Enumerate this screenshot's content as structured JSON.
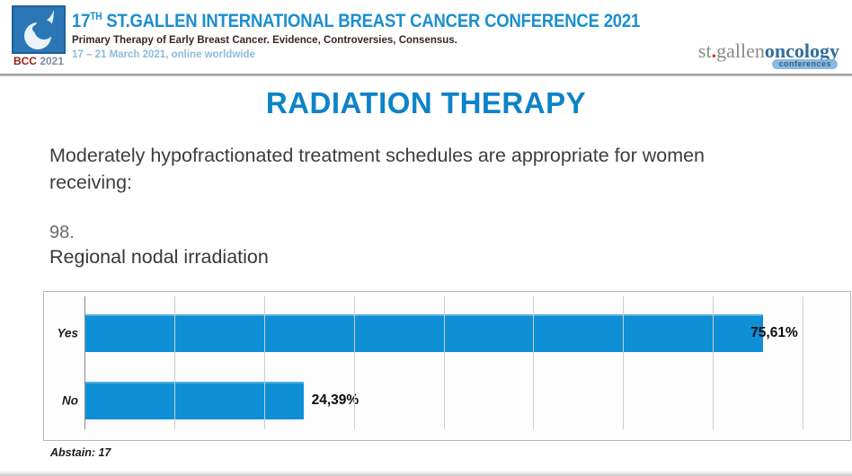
{
  "header": {
    "logo": {
      "bcc": "BCC",
      "year": "2021"
    },
    "title_num": "17",
    "title_sup": "TH",
    "title_rest": " ST.GALLEN INTERNATIONAL BREAST CANCER CONFERENCE 2021",
    "subtitle": "Primary Therapy of Early Breast Cancer. Evidence, Controversies, Consensus.",
    "dates": "17 – 21 March 2021, online worldwide",
    "org_logo": {
      "part1": "st",
      "dot": ".",
      "part2": "gallen",
      "part3": "oncology",
      "badge": "conferences"
    }
  },
  "slide": {
    "title": "RADIATION THERAPY",
    "question": "Moderately hypofractionated treatment schedules are appropriate for women receiving:",
    "question_number": "98.",
    "question_topic": "Regional nodal irradiation",
    "abstain": "Abstain: 17"
  },
  "chart_data": {
    "type": "bar",
    "orientation": "horizontal",
    "title": "Regional nodal irradiation",
    "question_number": 98,
    "categories": [
      "Yes",
      "No"
    ],
    "values": [
      75.61,
      24.39
    ],
    "value_labels": [
      "75,61%",
      "24,39%"
    ],
    "abstain_count": 17,
    "xlabel": "",
    "ylabel": "",
    "xlim": [
      0,
      85
    ],
    "gridline_interval": 10,
    "grid": true,
    "legend": false,
    "bar_color": "#0e8fd6"
  },
  "colors": {
    "slide_title_blue": "#0d83c8",
    "header_title_blue": "#1a8fd0",
    "dates_light_blue": "#8cbcdc",
    "subtitle_dark": "#3a2723",
    "bar_blue": "#0e8fd6",
    "bcc_red": "#9c2017",
    "org_logo_gray": "#8a8a8a",
    "org_oncology_blue": "#336e9e"
  }
}
